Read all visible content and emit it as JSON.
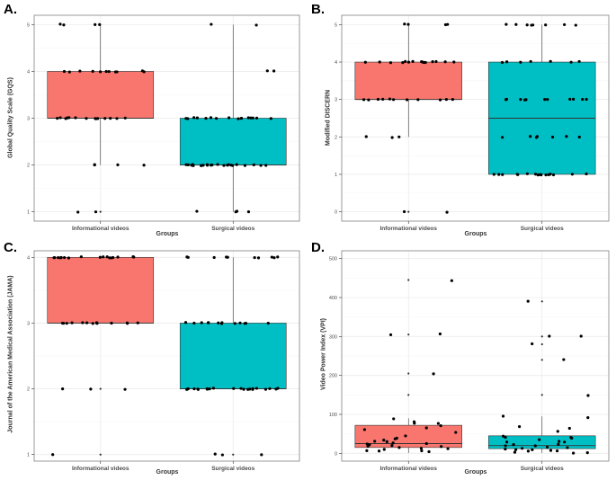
{
  "colors": {
    "informational": "#F8766D",
    "surgical": "#00BFC4",
    "grid": "#ebebeb",
    "border": "#7f7f7f"
  },
  "chart_data": [
    {
      "id": "A",
      "label": "A.",
      "type": "boxplot",
      "ylabel": "Global Quality Scale (GQS)",
      "xlabel": "Groups",
      "categories": [
        "Informational videos",
        "Surgical videos"
      ],
      "ylim": [
        0.8,
        5.2
      ],
      "yticks": [
        1,
        2,
        3,
        4,
        5
      ],
      "boxes": [
        {
          "q1": 3,
          "median": 3,
          "q3": 4,
          "whisker_low": 2,
          "whisker_high": 5,
          "outliers": [
            1
          ]
        },
        {
          "q1": 2,
          "median": 2,
          "q3": 3,
          "whisker_low": 1,
          "whisker_high": 5,
          "outliers": []
        }
      ],
      "points": [
        [
          5,
          5,
          5,
          5,
          4,
          4,
          4,
          4,
          4,
          4,
          4,
          4,
          4,
          4,
          4,
          3,
          3,
          3,
          3,
          3,
          3,
          3,
          3,
          3,
          3,
          3,
          3,
          3,
          3,
          2,
          2,
          2,
          2,
          1,
          1
        ],
        [
          5,
          5,
          4,
          4,
          3,
          3,
          3,
          3,
          3,
          3,
          3,
          3,
          3,
          3,
          3,
          3,
          3,
          3,
          3,
          3,
          2,
          2,
          2,
          2,
          2,
          2,
          2,
          2,
          2,
          2,
          2,
          2,
          2,
          2,
          2,
          2,
          2,
          2,
          2,
          2,
          2,
          2,
          2,
          2,
          1,
          1,
          1,
          1
        ]
      ]
    },
    {
      "id": "B",
      "label": "B.",
      "type": "boxplot",
      "ylabel": "Modified DISCERN",
      "xlabel": "Groups",
      "categories": [
        "Informational videos",
        "Surgical videos"
      ],
      "ylim": [
        -0.25,
        5.25
      ],
      "yticks": [
        0,
        1,
        2,
        3,
        4,
        5
      ],
      "boxes": [
        {
          "q1": 3,
          "median": 3,
          "q3": 4,
          "whisker_low": 2,
          "whisker_high": 5,
          "outliers": [
            0
          ]
        },
        {
          "q1": 1,
          "median": 2.5,
          "q3": 4,
          "whisker_low": 1,
          "whisker_high": 5,
          "outliers": []
        }
      ],
      "points": [
        [
          5,
          5,
          5,
          5,
          4,
          4,
          4,
          4,
          4,
          4,
          4,
          4,
          4,
          4,
          4,
          4,
          4,
          4,
          4,
          3,
          3,
          3,
          3,
          3,
          3,
          3,
          3,
          3,
          3,
          3,
          2,
          2,
          2,
          0,
          0
        ],
        [
          5,
          5,
          5,
          5,
          5,
          5,
          5,
          5,
          4,
          4,
          4,
          4,
          4,
          4,
          4,
          3,
          3,
          3,
          3,
          3,
          3,
          3,
          3,
          3,
          3,
          3,
          2,
          2,
          2,
          2,
          2,
          2,
          2,
          1,
          1,
          1,
          1,
          1,
          1,
          1,
          1,
          1,
          1,
          1,
          1,
          1,
          1,
          1,
          1,
          1
        ]
      ]
    },
    {
      "id": "C",
      "label": "C.",
      "type": "boxplot",
      "ylabel": "Journal of the American Medical Association (JAMA)",
      "xlabel": "Groups",
      "categories": [
        "Informational videos",
        "Surgical videos"
      ],
      "ylim": [
        0.9,
        4.1
      ],
      "yticks": [
        1,
        2,
        3,
        4
      ],
      "boxes": [
        {
          "q1": 3,
          "median": 3,
          "q3": 4,
          "whisker_low": 3,
          "whisker_high": 4,
          "outliers": [
            2,
            1
          ]
        },
        {
          "q1": 2,
          "median": 2,
          "q3": 3,
          "whisker_low": 2,
          "whisker_high": 4,
          "outliers": [
            1
          ]
        }
      ],
      "points": [
        [
          4,
          4,
          4,
          4,
          4,
          4,
          4,
          4,
          4,
          4,
          4,
          4,
          4,
          4,
          4,
          4,
          4,
          3,
          3,
          3,
          3,
          3,
          3,
          3,
          3,
          3,
          3,
          3,
          3,
          3,
          3,
          3,
          2,
          2,
          2,
          1
        ],
        [
          4,
          4,
          4,
          4,
          4,
          4,
          4,
          4,
          4,
          4,
          3,
          3,
          3,
          3,
          3,
          3,
          3,
          3,
          3,
          3,
          3,
          3,
          3,
          2,
          2,
          2,
          2,
          2,
          2,
          2,
          2,
          2,
          2,
          2,
          2,
          2,
          2,
          2,
          2,
          2,
          2,
          2,
          2,
          2,
          2,
          1,
          1,
          1
        ]
      ]
    },
    {
      "id": "D",
      "label": "D.",
      "type": "boxplot",
      "ylabel": "Video Power Index (VPI)",
      "xlabel": "Groups",
      "categories": [
        "Informational videos",
        "Surgical videos"
      ],
      "ylim": [
        -20,
        520
      ],
      "yticks": [
        0,
        100,
        200,
        300,
        400,
        500
      ],
      "boxes": [
        {
          "q1": 15,
          "median": 25,
          "q3": 72,
          "whisker_low": 1,
          "whisker_high": 90,
          "outliers": [
            150,
            205,
            305,
            445
          ]
        },
        {
          "q1": 12,
          "median": 20,
          "q3": 45,
          "whisker_low": 1,
          "whisker_high": 95,
          "outliers": [
            150,
            240,
            280,
            300,
            390
          ]
        }
      ],
      "points": [
        [
          445,
          305,
          305,
          205,
          88,
          80,
          78,
          76,
          70,
          65,
          60,
          55,
          45,
          40,
          38,
          35,
          32,
          30,
          28,
          26,
          25,
          22,
          20,
          18,
          16,
          15,
          14,
          12,
          10,
          8,
          6,
          5,
          3
        ],
        [
          390,
          300,
          300,
          280,
          240,
          150,
          95,
          90,
          70,
          65,
          55,
          45,
          42,
          40,
          38,
          35,
          32,
          30,
          28,
          25,
          22,
          20,
          18,
          16,
          15,
          14,
          12,
          10,
          9,
          8,
          6,
          5,
          4,
          3,
          2
        ]
      ]
    }
  ]
}
